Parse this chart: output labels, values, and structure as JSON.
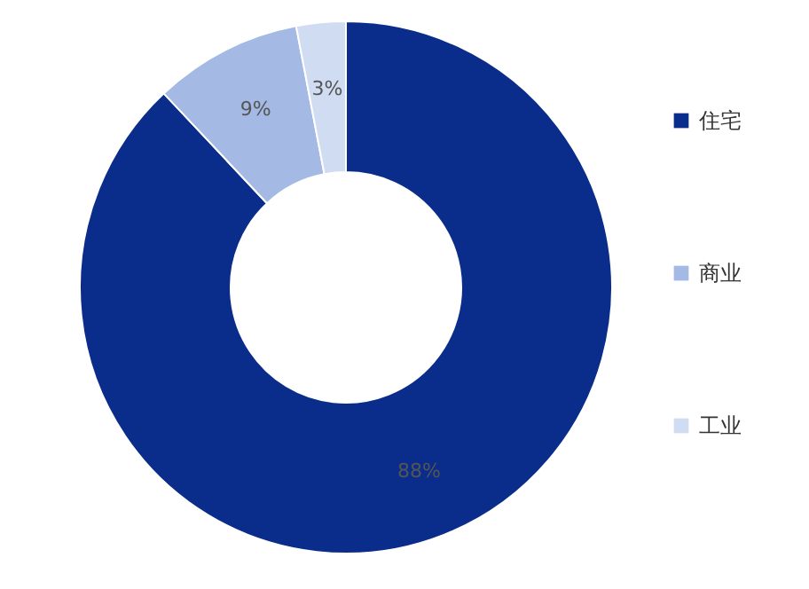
{
  "chart_data": {
    "type": "donut",
    "categories": [
      "住宅",
      "商业",
      "工业"
    ],
    "values": [
      88,
      9,
      3
    ],
    "colors": [
      "#0a2d8c",
      "#a4b9e3",
      "#d0dcf2"
    ],
    "value_labels": [
      "88%",
      "9%",
      "3%"
    ],
    "legend": "right"
  }
}
